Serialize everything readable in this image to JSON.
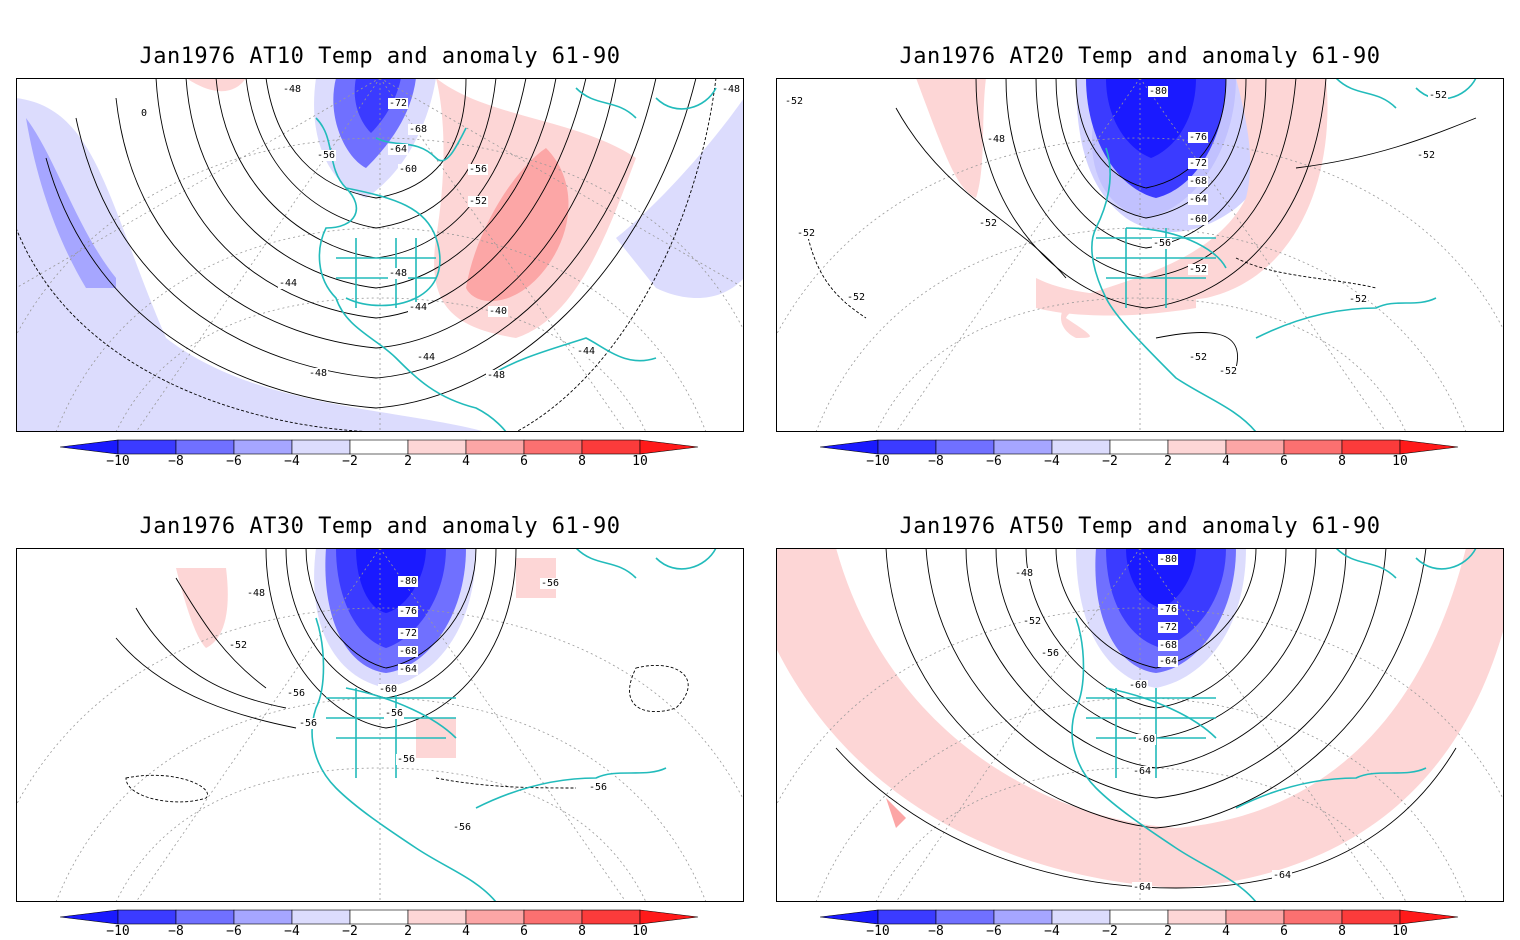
{
  "panels": [
    {
      "title": "Jan1976 AT10 Temp and anomaly 61-90",
      "contour_labels": [
        "-48",
        "-48",
        "-72",
        "-68",
        "-64",
        "-60",
        "-56",
        "-56",
        "-52",
        "-48",
        "-44",
        "-44",
        "-40",
        "-44",
        "-44",
        "-48",
        "-48",
        "0"
      ],
      "anomaly_regions": [
        {
          "sign": "negative",
          "level": "-2 to -4",
          "where": "west arc"
        },
        {
          "sign": "negative",
          "level": "-4 to -6",
          "where": "far west"
        },
        {
          "sign": "negative",
          "level": "-8 to -10",
          "where": "polar core"
        },
        {
          "sign": "positive",
          "level": "2 to 4",
          "where": "central-east arc"
        },
        {
          "sign": "positive",
          "level": "4 to 6",
          "where": "east center"
        }
      ]
    },
    {
      "title": "Jan1976 AT20 Temp and anomaly 61-90",
      "contour_labels": [
        "-52",
        "-80",
        "-52",
        "-48",
        "-76",
        "-72",
        "-68",
        "-64",
        "-60",
        "-56",
        "-52",
        "-52",
        "-52",
        "-52",
        "-52",
        "-52",
        "-52",
        "-52"
      ],
      "anomaly_regions": [
        {
          "sign": "negative",
          "level": "-8 to -10",
          "where": "polar core"
        },
        {
          "sign": "positive",
          "level": "2 to 4",
          "where": "arc"
        }
      ]
    },
    {
      "title": "Jan1976 AT30 Temp and anomaly 61-90",
      "contour_labels": [
        "-80",
        "-48",
        "-56",
        "-52",
        "-76",
        "-72",
        "-68",
        "-64",
        "-60",
        "-56",
        "-56",
        "-56",
        "-56",
        "-56",
        "-56"
      ],
      "anomaly_regions": [
        {
          "sign": "negative",
          "level": "-8 to -10",
          "where": "polar core"
        },
        {
          "sign": "positive",
          "level": "2 to 4",
          "where": "north-west"
        }
      ]
    },
    {
      "title": "Jan1976 AT50 Temp and anomaly 61-90",
      "contour_labels": [
        "-80",
        "-48",
        "-52",
        "-76",
        "-72",
        "-68",
        "-64",
        "-56",
        "-60",
        "-60",
        "-64",
        "-64",
        "-64"
      ],
      "anomaly_regions": [
        {
          "sign": "negative",
          "level": "-8 to -10",
          "where": "polar core"
        },
        {
          "sign": "positive",
          "level": "2 to 4",
          "where": "outer arc"
        }
      ]
    }
  ],
  "colorbar": {
    "ticks": [
      "-10",
      "-8",
      "-6",
      "-4",
      "-2",
      "2",
      "4",
      "6",
      "8",
      "10"
    ],
    "colors": [
      "#1a1aff",
      "#3b3bff",
      "#7070ff",
      "#a6a6ff",
      "#dcdcfd",
      "#ffffff",
      "#fdd6d6",
      "#fca6a6",
      "#fb7070",
      "#fb3b3b",
      "#ff1a1a"
    ]
  },
  "colors": {
    "coastline": "#22bbbb",
    "contour": "#000000",
    "grid": "#999999"
  }
}
